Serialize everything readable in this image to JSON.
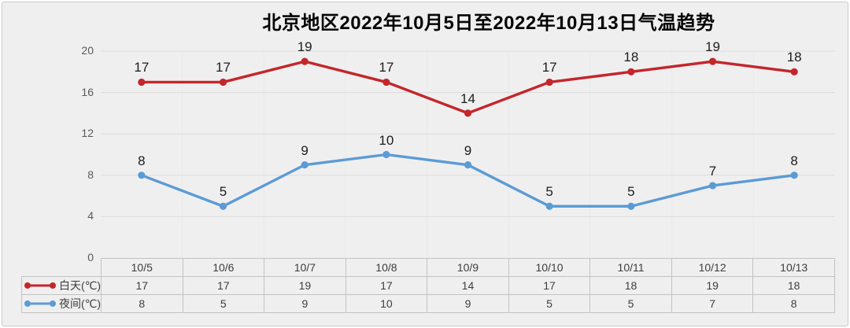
{
  "title": "北京地区2022年10月5日至2022年10月13日气温趋势",
  "chart_data": {
    "type": "line",
    "title": "北京地区2022年10月5日至2022年10月13日气温趋势",
    "categories": [
      "10/5",
      "10/6",
      "10/7",
      "10/8",
      "10/9",
      "10/10",
      "10/11",
      "10/12",
      "10/13"
    ],
    "series": [
      {
        "name": "白天(℃)",
        "color": "#c4262b",
        "values": [
          17,
          17,
          19,
          17,
          14,
          17,
          18,
          19,
          18
        ]
      },
      {
        "name": "夜间(℃)",
        "color": "#5b9bd5",
        "values": [
          8,
          5,
          9,
          10,
          9,
          5,
          5,
          7,
          8
        ]
      }
    ],
    "xlabel": "",
    "ylabel": "",
    "ylim": [
      0,
      20
    ],
    "yticks": [
      0,
      4,
      8,
      12,
      16,
      20
    ],
    "grid": true,
    "data_labels": true,
    "legend_position": "table-left",
    "colors": {
      "background": "#f0eff0",
      "gridline": "#dcdcdc",
      "vertical_gridline": "#e9e9e9",
      "table_border": "#c2c2c2",
      "tick_text": "#595959",
      "label_text": "#1c1c1c"
    }
  }
}
